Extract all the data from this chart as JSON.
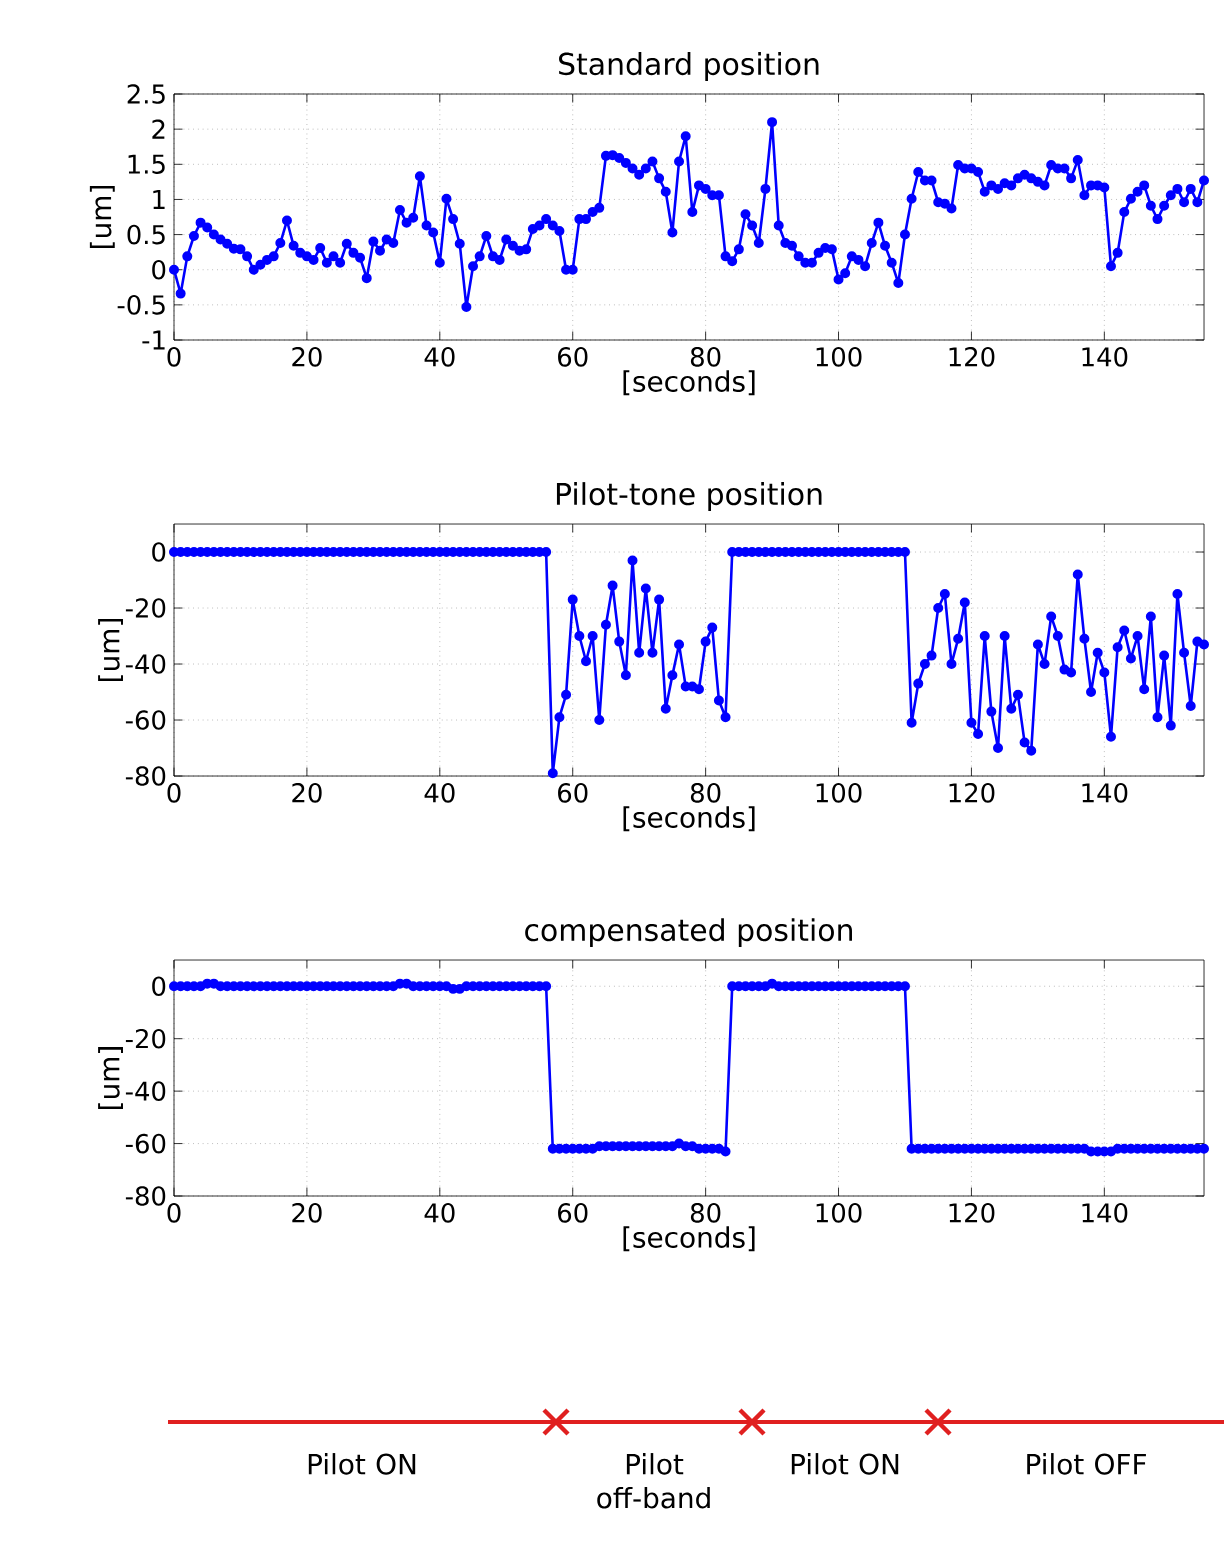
{
  "chart_data": [
    {
      "type": "line",
      "title": "Standard position",
      "xlabel": "[seconds]",
      "ylabel": "[um]",
      "color": "#0000ff",
      "marker": "circle",
      "grid": true,
      "xlim": [
        0,
        155
      ],
      "xticks": [
        0,
        20,
        40,
        60,
        80,
        100,
        120,
        140
      ],
      "ylim": [
        -1,
        2.5
      ],
      "yticks": [
        -1,
        -0.5,
        0,
        0.5,
        1,
        1.5,
        2,
        2.5
      ],
      "x": [
        0,
        1,
        2,
        3,
        4,
        5,
        6,
        7,
        8,
        9,
        10,
        11,
        12,
        13,
        14,
        15,
        16,
        17,
        18,
        19,
        20,
        21,
        22,
        23,
        24,
        25,
        26,
        27,
        28,
        29,
        30,
        31,
        32,
        33,
        34,
        35,
        36,
        37,
        38,
        39,
        40,
        41,
        42,
        43,
        44,
        45,
        46,
        47,
        48,
        49,
        50,
        51,
        52,
        53,
        54,
        55,
        56,
        57,
        58,
        59,
        60,
        61,
        62,
        63,
        64,
        65,
        66,
        67,
        68,
        69,
        70,
        71,
        72,
        73,
        74,
        75,
        76,
        77,
        78,
        79,
        80,
        81,
        82,
        83,
        84,
        85,
        86,
        87,
        88,
        89,
        90,
        91,
        92,
        93,
        94,
        95,
        96,
        97,
        98,
        99,
        100,
        101,
        102,
        103,
        104,
        105,
        106,
        107,
        108,
        109,
        110,
        111,
        112,
        113,
        114,
        115,
        116,
        117,
        118,
        119,
        120,
        121,
        122,
        123,
        124,
        125,
        126,
        127,
        128,
        129,
        130,
        131,
        132,
        133,
        134,
        135,
        136,
        137,
        138,
        139,
        140,
        141,
        142,
        143,
        144,
        145,
        146,
        147,
        148,
        149,
        150,
        151,
        152,
        153,
        154,
        155
      ],
      "values": [
        0.0,
        -0.34,
        0.19,
        0.48,
        0.67,
        0.6,
        0.5,
        0.43,
        0.37,
        0.3,
        0.29,
        0.19,
        0.0,
        0.07,
        0.14,
        0.19,
        0.38,
        0.7,
        0.34,
        0.24,
        0.19,
        0.14,
        0.31,
        0.1,
        0.19,
        0.1,
        0.37,
        0.24,
        0.17,
        -0.12,
        0.4,
        0.27,
        0.43,
        0.38,
        0.85,
        0.67,
        0.74,
        1.33,
        0.63,
        0.53,
        0.1,
        1.01,
        0.72,
        0.37,
        -0.53,
        0.05,
        0.19,
        0.48,
        0.19,
        0.14,
        0.43,
        0.34,
        0.27,
        0.29,
        0.58,
        0.63,
        0.72,
        0.63,
        0.55,
        0.0,
        0.0,
        0.72,
        0.72,
        0.82,
        0.88,
        1.62,
        1.63,
        1.59,
        1.52,
        1.44,
        1.35,
        1.44,
        1.54,
        1.3,
        1.11,
        0.53,
        1.54,
        1.9,
        0.82,
        1.2,
        1.15,
        1.06,
        1.06,
        0.19,
        0.12,
        0.29,
        0.79,
        0.63,
        0.38,
        1.15,
        2.1,
        0.63,
        0.38,
        0.34,
        0.19,
        0.1,
        0.1,
        0.24,
        0.31,
        0.29,
        -0.14,
        -0.05,
        0.19,
        0.14,
        0.05,
        0.38,
        0.67,
        0.34,
        0.1,
        -0.19,
        0.5,
        1.01,
        1.39,
        1.27,
        1.27,
        0.96,
        0.94,
        0.87,
        1.49,
        1.44,
        1.44,
        1.39,
        1.11,
        1.2,
        1.15,
        1.23,
        1.2,
        1.3,
        1.35,
        1.3,
        1.25,
        1.2,
        1.49,
        1.44,
        1.44,
        1.3,
        1.56,
        1.06,
        1.2,
        1.2,
        1.17,
        0.05,
        0.24,
        0.82,
        1.01,
        1.11,
        1.2,
        0.91,
        0.72,
        0.91,
        1.06,
        1.15,
        0.96,
        1.15,
        0.96,
        1.27
      ]
    },
    {
      "type": "line",
      "title": "Pilot-tone position",
      "xlabel": "[seconds]",
      "ylabel": "[um]",
      "color": "#0000ff",
      "marker": "circle",
      "grid": true,
      "xlim": [
        0,
        155
      ],
      "xticks": [
        0,
        20,
        40,
        60,
        80,
        100,
        120,
        140
      ],
      "ylim": [
        -80,
        10
      ],
      "yticks": [
        -80,
        -60,
        -40,
        -20,
        0
      ],
      "x": [
        0,
        1,
        2,
        3,
        4,
        5,
        6,
        7,
        8,
        9,
        10,
        11,
        12,
        13,
        14,
        15,
        16,
        17,
        18,
        19,
        20,
        21,
        22,
        23,
        24,
        25,
        26,
        27,
        28,
        29,
        30,
        31,
        32,
        33,
        34,
        35,
        36,
        37,
        38,
        39,
        40,
        41,
        42,
        43,
        44,
        45,
        46,
        47,
        48,
        49,
        50,
        51,
        52,
        53,
        54,
        55,
        56,
        57,
        58,
        59,
        60,
        61,
        62,
        63,
        64,
        65,
        66,
        67,
        68,
        69,
        70,
        71,
        72,
        73,
        74,
        75,
        76,
        77,
        78,
        79,
        80,
        81,
        82,
        83,
        84,
        85,
        86,
        87,
        88,
        89,
        90,
        91,
        92,
        93,
        94,
        95,
        96,
        97,
        98,
        99,
        100,
        101,
        102,
        103,
        104,
        105,
        106,
        107,
        108,
        109,
        110,
        111,
        112,
        113,
        114,
        115,
        116,
        117,
        118,
        119,
        120,
        121,
        122,
        123,
        124,
        125,
        126,
        127,
        128,
        129,
        130,
        131,
        132,
        133,
        134,
        135,
        136,
        137,
        138,
        139,
        140,
        141,
        142,
        143,
        144,
        145,
        146,
        147,
        148,
        149,
        150,
        151,
        152,
        153,
        154,
        155
      ],
      "values": [
        0,
        0,
        0,
        0,
        0,
        0,
        0,
        0,
        0,
        0,
        0,
        0,
        0,
        0,
        0,
        0,
        0,
        0,
        0,
        0,
        0,
        0,
        0,
        0,
        0,
        0,
        0,
        0,
        0,
        0,
        0,
        0,
        0,
        0,
        0,
        0,
        0,
        0,
        0,
        0,
        0,
        0,
        0,
        0,
        0,
        0,
        0,
        0,
        0,
        0,
        0,
        0,
        0,
        0,
        0,
        0,
        0,
        -79,
        -59,
        -51,
        -17,
        -30,
        -39,
        -30,
        -60,
        -26,
        -12,
        -32,
        -44,
        -3,
        -36,
        -13,
        -36,
        -17,
        -56,
        -44,
        -33,
        -48,
        -48,
        -49,
        -32,
        -27,
        -53,
        -59,
        0,
        0,
        0,
        0,
        0,
        0,
        0,
        0,
        0,
        0,
        0,
        0,
        0,
        0,
        0,
        0,
        0,
        0,
        0,
        0,
        0,
        0,
        0,
        0,
        0,
        0,
        0,
        -61,
        -47,
        -40,
        -37,
        -20,
        -15,
        -40,
        -31,
        -18,
        -61,
        -65,
        -30,
        -57,
        -70,
        -30,
        -56,
        -51,
        -68,
        -71,
        -33,
        -40,
        -23,
        -30,
        -42,
        -43,
        -8,
        -31,
        -50,
        -36,
        -43,
        -66,
        -34,
        -28,
        -38,
        -30,
        -49,
        -23,
        -59,
        -37,
        -62,
        -15,
        -36,
        -55,
        -32,
        -33
      ]
    },
    {
      "type": "line",
      "title": "compensated position",
      "xlabel": "[seconds]",
      "ylabel": "[um]",
      "color": "#0000ff",
      "marker": "circle",
      "grid": true,
      "xlim": [
        0,
        155
      ],
      "xticks": [
        0,
        20,
        40,
        60,
        80,
        100,
        120,
        140
      ],
      "ylim": [
        -80,
        10
      ],
      "yticks": [
        -80,
        -60,
        -40,
        -20,
        0
      ],
      "x": [
        0,
        1,
        2,
        3,
        4,
        5,
        6,
        7,
        8,
        9,
        10,
        11,
        12,
        13,
        14,
        15,
        16,
        17,
        18,
        19,
        20,
        21,
        22,
        23,
        24,
        25,
        26,
        27,
        28,
        29,
        30,
        31,
        32,
        33,
        34,
        35,
        36,
        37,
        38,
        39,
        40,
        41,
        42,
        43,
        44,
        45,
        46,
        47,
        48,
        49,
        50,
        51,
        52,
        53,
        54,
        55,
        56,
        57,
        58,
        59,
        60,
        61,
        62,
        63,
        64,
        65,
        66,
        67,
        68,
        69,
        70,
        71,
        72,
        73,
        74,
        75,
        76,
        77,
        78,
        79,
        80,
        81,
        82,
        83,
        84,
        85,
        86,
        87,
        88,
        89,
        90,
        91,
        92,
        93,
        94,
        95,
        96,
        97,
        98,
        99,
        100,
        101,
        102,
        103,
        104,
        105,
        106,
        107,
        108,
        109,
        110,
        111,
        112,
        113,
        114,
        115,
        116,
        117,
        118,
        119,
        120,
        121,
        122,
        123,
        124,
        125,
        126,
        127,
        128,
        129,
        130,
        131,
        132,
        133,
        134,
        135,
        136,
        137,
        138,
        139,
        140,
        141,
        142,
        143,
        144,
        145,
        146,
        147,
        148,
        149,
        150,
        151,
        152,
        153,
        154,
        155
      ],
      "values": [
        0,
        0,
        0,
        0,
        0,
        1,
        1,
        0,
        0,
        0,
        0,
        0,
        0,
        0,
        0,
        0,
        0,
        0,
        0,
        0,
        0,
        0,
        0,
        0,
        0,
        0,
        0,
        0,
        0,
        0,
        0,
        0,
        0,
        0,
        1,
        1,
        0,
        0,
        0,
        0,
        0,
        0,
        -1,
        -1,
        0,
        0,
        0,
        0,
        0,
        0,
        0,
        0,
        0,
        0,
        0,
        0,
        0,
        -62,
        -62,
        -62,
        -62,
        -62,
        -62,
        -62,
        -61,
        -61,
        -61,
        -61,
        -61,
        -61,
        -61,
        -61,
        -61,
        -61,
        -61,
        -61,
        -60,
        -61,
        -61,
        -62,
        -62,
        -62,
        -62,
        -63,
        0,
        0,
        0,
        0,
        0,
        0,
        1,
        0,
        0,
        0,
        0,
        0,
        0,
        0,
        0,
        0,
        0,
        0,
        0,
        0,
        0,
        0,
        0,
        0,
        0,
        0,
        0,
        -62,
        -62,
        -62,
        -62,
        -62,
        -62,
        -62,
        -62,
        -62,
        -62,
        -62,
        -62,
        -62,
        -62,
        -62,
        -62,
        -62,
        -62,
        -62,
        -62,
        -62,
        -62,
        -62,
        -62,
        -62,
        -62,
        -62,
        -63,
        -63,
        -63,
        -63,
        -62,
        -62,
        -62,
        -62,
        -62,
        -62,
        -62,
        -62,
        -62,
        -62,
        -62,
        -62,
        -62,
        -62
      ]
    },
    {
      "type": "other",
      "color": "#e02020",
      "annotations": [
        "Pilot ON",
        "Pilot off-band",
        "Pilot ON",
        "Pilot OFF"
      ]
    }
  ]
}
